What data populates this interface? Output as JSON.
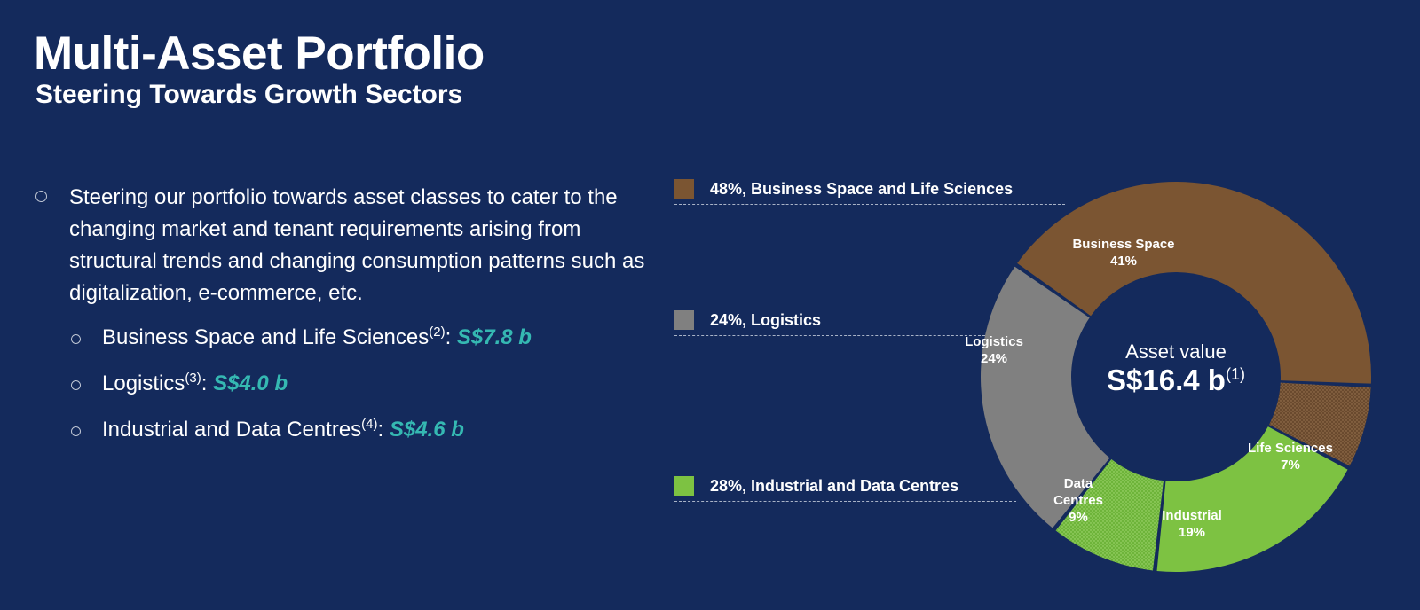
{
  "header": {
    "title": "Multi-Asset Portfolio",
    "subtitle": "Steering Towards Growth Sectors"
  },
  "bullets": {
    "main": "Steering our portfolio towards asset classes to cater to the changing market and tenant requirements arising from structural trends and changing consumption patterns such as digitalization, e-commerce, etc.",
    "sub": [
      {
        "label": "Business Space and Life Sciences",
        "note": "(2)",
        "sep": ": ",
        "value": "S$7.8 b"
      },
      {
        "label": "Logistics",
        "note": "(3)",
        "sep": ": ",
        "value": "S$4.0 b"
      },
      {
        "label": "Industrial and Data Centres",
        "note": "(4)",
        "sep": ": ",
        "value": "S$4.6 b"
      }
    ]
  },
  "legend": [
    {
      "text": "48%, Business Space and Life Sciences",
      "color": "#7b5532"
    },
    {
      "text": "24%, Logistics",
      "color": "#808080"
    },
    {
      "text": "28%, Industrial and Data Centres",
      "color": "#7dc242"
    }
  ],
  "center": {
    "caption": "Asset value",
    "value": "S$16.4 b",
    "note": "(1)"
  },
  "chart_data": {
    "type": "pie",
    "style": "donut",
    "categories": [
      "Business Space",
      "Life Sciences",
      "Industrial",
      "Data Centres",
      "Logistics"
    ],
    "values": [
      41,
      7,
      19,
      9,
      24
    ],
    "labels": [
      [
        "Business Space",
        "41%"
      ],
      [
        "Life Sciences",
        "7%"
      ],
      [
        "Industrial",
        "19%"
      ],
      [
        "Data",
        "Centres",
        "9%"
      ],
      [
        "Logistics",
        "24%"
      ]
    ],
    "colors": [
      "#7b5532",
      "#6a4a2e",
      "#7dc242",
      "#6eb43a",
      "#808080"
    ],
    "patterned": [
      false,
      true,
      false,
      true,
      false
    ]
  }
}
